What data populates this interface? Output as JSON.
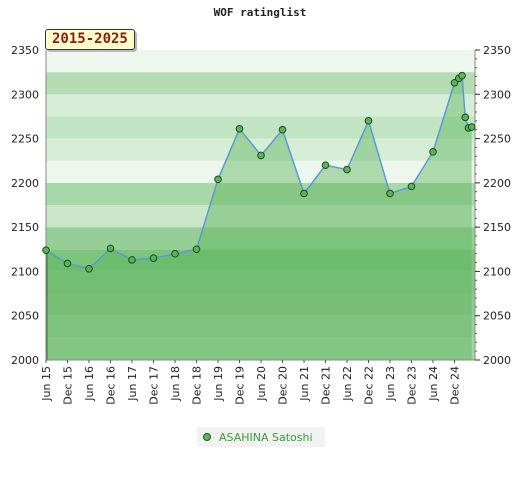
{
  "chart_data": {
    "type": "area",
    "title": "WOF ratinglist",
    "period": "2015-2025",
    "categories": [
      "Jun 15",
      "Dec 15",
      "Jun 16",
      "Dec 16",
      "Jun 17",
      "Dec 17",
      "Jun 18",
      "Dec 18",
      "Jun 19",
      "Dec 19",
      "Jun 20",
      "Dec 20",
      "Jun 21",
      "Dec 21",
      "Jun 22",
      "Dec 22",
      "Jun 23",
      "Dec 23",
      "Jun 24",
      "Dec 24"
    ],
    "ylim": [
      2000,
      2350
    ],
    "yticks": [
      2000,
      2050,
      2100,
      2150,
      2200,
      2250,
      2300,
      2350
    ],
    "series": [
      {
        "name": "ASAHINA Satoshi",
        "color": "#5db35d",
        "points": [
          {
            "x": 0,
            "y": 2124
          },
          {
            "x": 1,
            "y": 2109
          },
          {
            "x": 2,
            "y": 2103
          },
          {
            "x": 3,
            "y": 2126
          },
          {
            "x": 4,
            "y": 2113
          },
          {
            "x": 5,
            "y": 2115
          },
          {
            "x": 6,
            "y": 2120
          },
          {
            "x": 7,
            "y": 2125
          },
          {
            "x": 8,
            "y": 2204
          },
          {
            "x": 9,
            "y": 2261
          },
          {
            "x": 10,
            "y": 2231
          },
          {
            "x": 11,
            "y": 2260
          },
          {
            "x": 12,
            "y": 2188
          },
          {
            "x": 13,
            "y": 2220
          },
          {
            "x": 14,
            "y": 2215
          },
          {
            "x": 15,
            "y": 2270
          },
          {
            "x": 16,
            "y": 2188
          },
          {
            "x": 17,
            "y": 2196
          },
          {
            "x": 18,
            "y": 2235
          },
          {
            "x": 19,
            "y": 2313
          },
          {
            "x": 19.2,
            "y": 2318
          },
          {
            "x": 19.35,
            "y": 2321
          },
          {
            "x": 19.5,
            "y": 2274
          },
          {
            "x": 19.65,
            "y": 2262
          },
          {
            "x": 19.8,
            "y": 2263
          }
        ]
      }
    ]
  }
}
